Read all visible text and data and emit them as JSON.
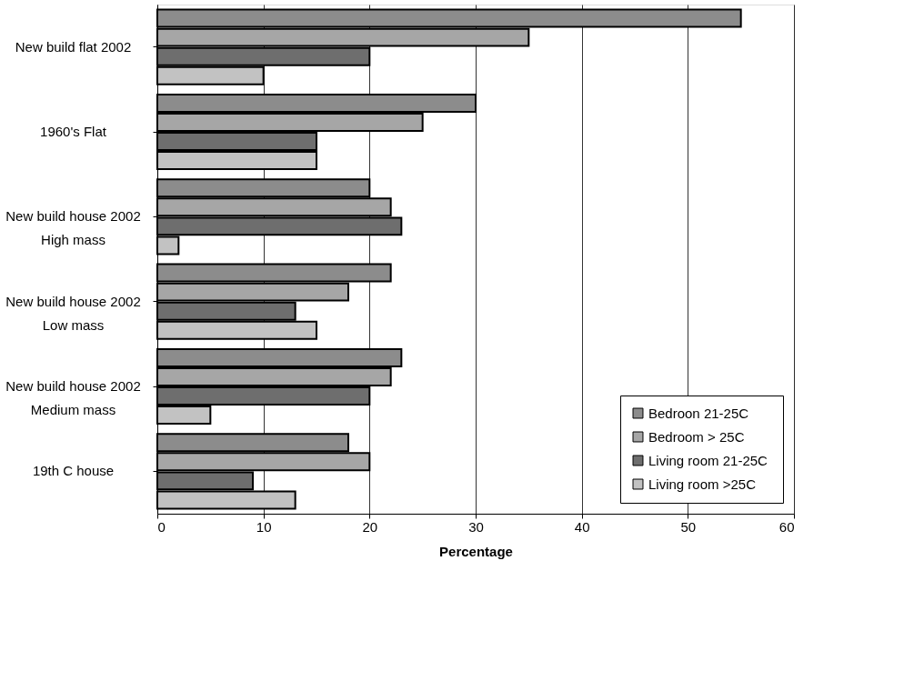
{
  "chart_data": {
    "type": "bar",
    "orientation": "horizontal",
    "xlabel": "Percentage",
    "categories": [
      "New build flat 2002",
      "1960's Flat",
      "New build house 2002\nHigh mass",
      "New build house 2002\nLow mass",
      "New build house 2002\nMedium mass",
      "19th C house"
    ],
    "series": [
      {
        "name": "Bedroon 21-25C",
        "color": "#8c8c8c",
        "values": [
          55,
          30,
          20,
          22,
          23,
          18
        ]
      },
      {
        "name": "Bedroom > 25C",
        "color": "#a6a6a6",
        "values": [
          35,
          25,
          22,
          18,
          22,
          20
        ]
      },
      {
        "name": "Living room  21-25C",
        "color": "#6e6e6e",
        "values": [
          20,
          15,
          23,
          13,
          20,
          9
        ]
      },
      {
        "name": "Living room >25C",
        "color": "#c2c2c2",
        "values": [
          10,
          15,
          2,
          15,
          5,
          13
        ]
      }
    ],
    "xlim": [
      0,
      60
    ],
    "xticks": [
      0,
      10,
      20,
      30,
      40,
      50,
      60
    ],
    "grid": "x",
    "legend": "bottom right"
  }
}
